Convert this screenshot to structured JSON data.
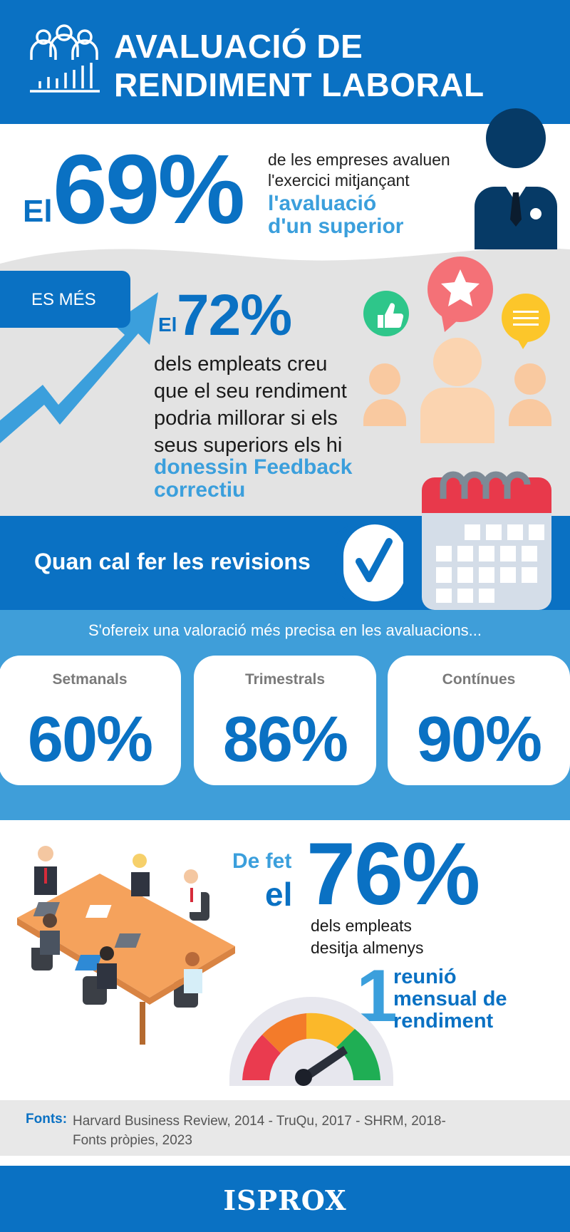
{
  "header": {
    "title_line1": "AVALUACIÓ DE",
    "title_line2": "RENDIMENT LABORAL",
    "icon": "team-chart-icon"
  },
  "stat1": {
    "prefix": "El",
    "value": "69%",
    "text_line1": "de les empreses avaluen",
    "text_line2": "l'exercici mitjançant",
    "highlight_line1": "l'avaluació",
    "highlight_line2": "d'un superior",
    "icon": "businessman-icon"
  },
  "stat2": {
    "badge": "ES MÉS",
    "prefix": "El",
    "value": "72%",
    "text_lines": [
      "dels empleats creu",
      "que el seu rendiment",
      "podria millorar si els",
      "seus superiors els hi"
    ],
    "highlight_line1": "donessin Feedback",
    "highlight_line2": "correctiu",
    "icons": [
      "growth-arrow-icon",
      "thumbs-up-icon",
      "star-bubble-icon",
      "message-bubble-icon",
      "people-group-icon"
    ]
  },
  "revisions": {
    "title": "Quan cal fer les revisions",
    "subtitle": "S'ofereix una valoració més precisa en les avaluacions...",
    "cards": [
      {
        "label": "Setmanals",
        "value": "60%"
      },
      {
        "label": "Trimestrals",
        "value": "86%"
      },
      {
        "label": "Contínues",
        "value": "90%"
      }
    ],
    "icons": [
      "checkmark-icon",
      "calendar-icon"
    ]
  },
  "stat3": {
    "prefix1": "De fet",
    "prefix2": "el",
    "value": "76%",
    "text_line1": "dels empleats",
    "text_line2": "desitja almenys",
    "number": "1",
    "highlight_line1": "reunió",
    "highlight_line2": "mensual de",
    "highlight_line3": "rendiment",
    "icons": [
      "meeting-table-icon",
      "gauge-icon"
    ]
  },
  "sources": {
    "label": "Fonts:",
    "line1": "Harvard Business Review, 2014 - TruQu, 2017 - SHRM, 2018-",
    "line2": "Fonts pròpies, 2023"
  },
  "footer": {
    "logo": "ISPROX"
  },
  "colors": {
    "primary": "#0a71c3",
    "light": "#3f9ed9",
    "highlight": "#3b9fdc",
    "gray_bg": "#e3e3e3"
  }
}
